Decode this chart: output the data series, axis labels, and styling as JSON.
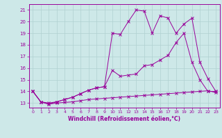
{
  "xlabel": "Windchill (Refroidissement éolien,°C)",
  "background_color": "#cde8e8",
  "grid_color": "#b0d0d0",
  "line_color": "#990099",
  "xlim": [
    -0.5,
    23.5
  ],
  "ylim": [
    12.6,
    21.5
  ],
  "xticks": [
    0,
    1,
    2,
    3,
    4,
    5,
    6,
    7,
    8,
    9,
    10,
    11,
    12,
    13,
    14,
    15,
    16,
    17,
    18,
    19,
    20,
    21,
    22,
    23
  ],
  "yticks": [
    13,
    14,
    15,
    16,
    17,
    18,
    19,
    20,
    21
  ],
  "line1_x": [
    0,
    1,
    2,
    3,
    4,
    5,
    6,
    7,
    8,
    9,
    10,
    11,
    12,
    13,
    14,
    15,
    16,
    17,
    18,
    19,
    20,
    21,
    22,
    23
  ],
  "line1_y": [
    14.0,
    13.1,
    12.9,
    13.0,
    13.05,
    13.1,
    13.2,
    13.3,
    13.35,
    13.4,
    13.45,
    13.5,
    13.55,
    13.6,
    13.65,
    13.7,
    13.75,
    13.8,
    13.85,
    13.9,
    13.95,
    14.0,
    14.05,
    13.9
  ],
  "line2_x": [
    0,
    1,
    2,
    3,
    4,
    5,
    6,
    7,
    8,
    9,
    10,
    11,
    12,
    13,
    14,
    15,
    16,
    17,
    18,
    19,
    20,
    21,
    22,
    23
  ],
  "line2_y": [
    14.0,
    13.1,
    13.0,
    13.1,
    13.3,
    13.5,
    13.8,
    14.1,
    14.3,
    14.4,
    15.8,
    15.3,
    15.4,
    15.5,
    16.2,
    16.3,
    16.7,
    17.1,
    18.2,
    19.0,
    16.5,
    15.0,
    14.0,
    14.0
  ],
  "line3_x": [
    0,
    1,
    2,
    3,
    4,
    5,
    6,
    7,
    8,
    9,
    10,
    11,
    12,
    13,
    14,
    15,
    16,
    17,
    18,
    19,
    20,
    21,
    22,
    23
  ],
  "line3_y": [
    14.0,
    13.1,
    12.9,
    13.1,
    13.3,
    13.5,
    13.8,
    14.1,
    14.3,
    14.4,
    19.0,
    18.9,
    20.0,
    21.0,
    20.9,
    19.0,
    20.5,
    20.3,
    19.0,
    19.8,
    20.3,
    16.5,
    15.1,
    14.0
  ]
}
